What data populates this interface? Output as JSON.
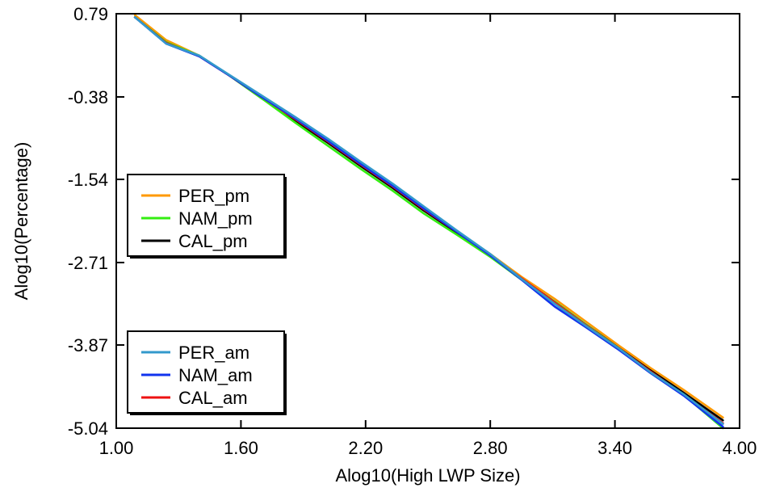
{
  "chart_data": {
    "type": "line",
    "title": "",
    "xlabel": "Alog10(High LWP Size)",
    "ylabel": "Alog10(Percentage)",
    "xlim": [
      1.0,
      4.0
    ],
    "ylim": [
      -5.04,
      0.79
    ],
    "x_ticks": [
      "1.00",
      "1.60",
      "2.20",
      "2.80",
      "3.40",
      "4.00"
    ],
    "y_ticks": [
      "0.79",
      "-0.38",
      "-1.54",
      "-2.71",
      "-3.87",
      "-5.04"
    ],
    "grid": false,
    "legends": [
      {
        "placement": "middle-left",
        "entries": [
          "PER_pm",
          "NAM_pm",
          "CAL_pm"
        ]
      },
      {
        "placement": "bottom-left",
        "entries": [
          "PER_am",
          "NAM_am",
          "CAL_am"
        ]
      }
    ],
    "series": [
      {
        "name": "CAL_pm",
        "color": "#000000",
        "x": [
          1.09,
          1.24,
          1.4,
          1.55,
          1.7,
          1.86,
          2.02,
          2.17,
          2.33,
          2.48,
          2.64,
          2.8,
          2.95,
          3.11,
          3.26,
          3.42,
          3.57,
          3.73,
          3.92
        ],
        "y": [
          0.74,
          0.4,
          0.2,
          -0.09,
          -0.4,
          -0.71,
          -1.03,
          -1.34,
          -1.66,
          -1.98,
          -2.29,
          -2.61,
          -2.94,
          -3.26,
          -3.58,
          -3.91,
          -4.22,
          -4.54,
          -4.93
        ]
      },
      {
        "name": "PER_pm",
        "color": "#ff9900",
        "x": [
          1.09,
          1.24,
          1.4,
          1.55,
          1.7,
          1.86,
          2.02,
          2.17,
          2.33,
          2.48,
          2.64,
          2.8,
          2.95,
          3.11,
          3.26,
          3.42,
          3.57,
          3.73,
          3.92
        ],
        "y": [
          0.77,
          0.42,
          0.2,
          -0.09,
          -0.39,
          -0.69,
          -1.0,
          -1.31,
          -1.63,
          -1.95,
          -2.27,
          -2.59,
          -2.91,
          -3.22,
          -3.54,
          -3.88,
          -4.19,
          -4.5,
          -4.89
        ]
      },
      {
        "name": "NAM_pm",
        "color": "#33ee11",
        "x": [
          1.09,
          1.24,
          1.4,
          1.55,
          1.7,
          1.86,
          2.02,
          2.17,
          2.33,
          2.48,
          2.64,
          2.8,
          2.95,
          3.11,
          3.26,
          3.42,
          3.57,
          3.73,
          3.92
        ],
        "y": [
          0.74,
          0.39,
          0.2,
          -0.09,
          -0.4,
          -0.74,
          -1.07,
          -1.38,
          -1.7,
          -2.02,
          -2.32,
          -2.63,
          -2.95,
          -3.26,
          -3.58,
          -3.92,
          -4.26,
          -4.57,
          -5.04
        ]
      },
      {
        "name": "CAL_am",
        "color": "#ee1111",
        "x": [
          1.09,
          1.24,
          1.4,
          1.55,
          1.7,
          1.86,
          2.02,
          2.17,
          2.33,
          2.48,
          2.64,
          2.8,
          2.95,
          3.11,
          3.26,
          3.42,
          3.57,
          3.73,
          3.92
        ],
        "y": [
          0.74,
          0.38,
          0.19,
          -0.09,
          -0.38,
          -0.69,
          -1.01,
          -1.32,
          -1.64,
          -1.96,
          -2.28,
          -2.61,
          -2.93,
          -3.27,
          -3.59,
          -3.92,
          -4.24,
          -4.57,
          -4.97
        ]
      },
      {
        "name": "NAM_am",
        "color": "#1133ee",
        "x": [
          1.09,
          1.24,
          1.4,
          1.55,
          1.7,
          1.86,
          2.02,
          2.17,
          2.33,
          2.48,
          2.64,
          2.8,
          2.95,
          3.11,
          3.26,
          3.42,
          3.57,
          3.73,
          3.92
        ],
        "y": [
          0.74,
          0.37,
          0.19,
          -0.09,
          -0.38,
          -0.68,
          -1.0,
          -1.31,
          -1.63,
          -1.95,
          -2.28,
          -2.61,
          -2.95,
          -3.33,
          -3.62,
          -3.94,
          -4.26,
          -4.58,
          -5.02
        ]
      },
      {
        "name": "PER_am",
        "color": "#3399cc",
        "x": [
          1.09,
          1.24,
          1.4,
          1.55,
          1.7,
          1.86,
          2.02,
          2.17,
          2.33,
          2.48,
          2.64,
          2.8,
          2.95,
          3.11,
          3.26,
          3.42,
          3.57,
          3.73,
          3.92
        ],
        "y": [
          0.74,
          0.37,
          0.2,
          -0.08,
          -0.36,
          -0.66,
          -0.97,
          -1.28,
          -1.6,
          -1.92,
          -2.26,
          -2.59,
          -2.94,
          -3.29,
          -3.6,
          -3.92,
          -4.25,
          -4.56,
          -4.98
        ]
      }
    ]
  }
}
